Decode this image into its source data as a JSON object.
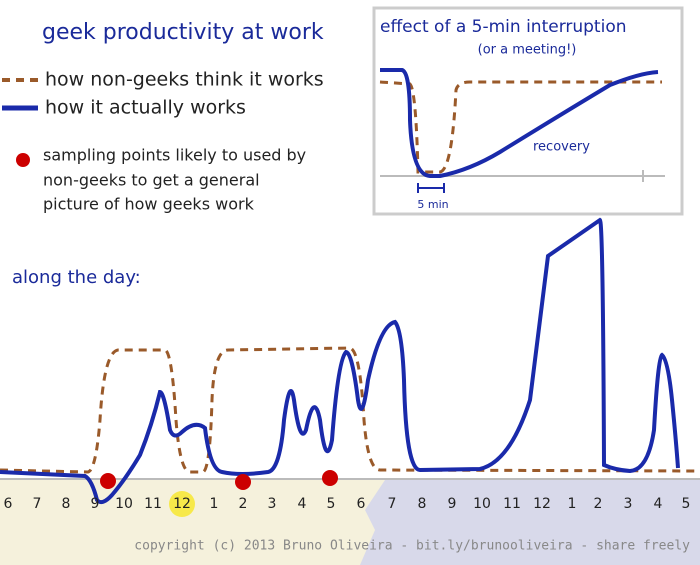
{
  "title": "geek productivity at work",
  "legend": [
    "how non-geeks think it works",
    "how it actually works"
  ],
  "note": [
    "sampling points likely to used by",
    "non-geeks to get a general",
    "picture of how geeks work"
  ],
  "inset": {
    "title": "effect of a 5-min interruption",
    "subtitle": "(or a meeting!)",
    "recovery": "recovery",
    "span": "5 min"
  },
  "day_label": "along the day:",
  "hours": [
    "6",
    "7",
    "8",
    "9",
    "10",
    "11",
    "12",
    "1",
    "2",
    "3",
    "4",
    "5",
    "6",
    "7",
    "8",
    "9",
    "10",
    "11",
    "12",
    "1",
    "2",
    "3",
    "4",
    "5"
  ],
  "copyright": "copyright (c) 2013 Bruno Oliveira - bit.ly/brunooliveira - share freely"
}
